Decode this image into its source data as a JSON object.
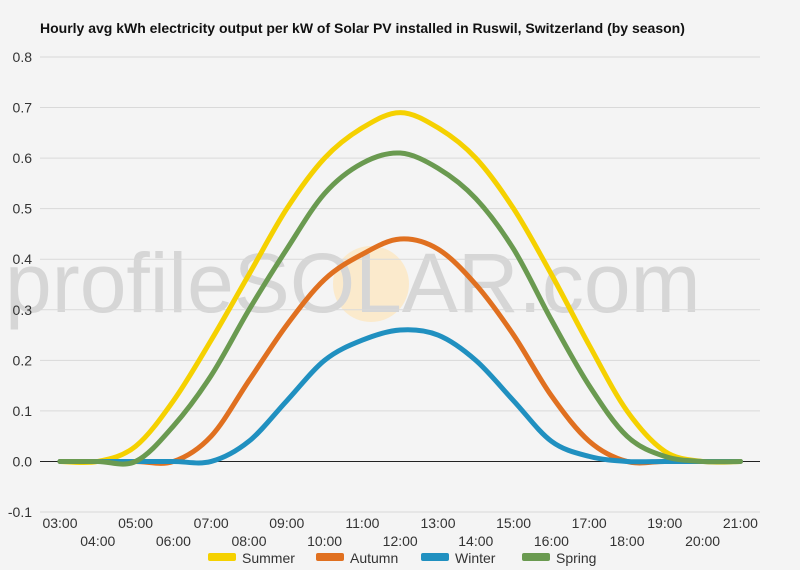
{
  "chart_data": {
    "type": "line",
    "title": "Hourly avg kWh electricity output per kW of Solar PV installed in Ruswil, Switzerland (by season)",
    "watermark": "profileSOLAR.com",
    "xlabel": "",
    "ylabel": "",
    "ylim": [
      -0.1,
      0.8
    ],
    "yticks": [
      "-0.1",
      "0.0",
      "0.1",
      "0.2",
      "0.3",
      "0.4",
      "0.5",
      "0.6",
      "0.7",
      "0.8"
    ],
    "xticks": [
      "03:00",
      "04:00",
      "05:00",
      "06:00",
      "07:00",
      "08:00",
      "09:00",
      "10:00",
      "11:00",
      "12:00",
      "13:00",
      "14:00",
      "15:00",
      "16:00",
      "17:00",
      "18:00",
      "19:00",
      "20:00",
      "21:00"
    ],
    "grid": true,
    "legend_position": "bottom",
    "series": [
      {
        "name": "Summer",
        "color": "#F5D100",
        "values": [
          0,
          0,
          0.03,
          0.12,
          0.24,
          0.37,
          0.5,
          0.6,
          0.66,
          0.69,
          0.66,
          0.6,
          0.5,
          0.37,
          0.23,
          0.1,
          0.02,
          0,
          0
        ]
      },
      {
        "name": "Autumn",
        "color": "#E07020",
        "values": [
          0,
          0,
          0,
          0,
          0.05,
          0.16,
          0.27,
          0.36,
          0.41,
          0.44,
          0.42,
          0.35,
          0.25,
          0.13,
          0.04,
          0,
          0,
          0,
          0
        ]
      },
      {
        "name": "Winter",
        "color": "#2090C0",
        "values": [
          0,
          0,
          0,
          0,
          0,
          0.04,
          0.12,
          0.2,
          0.24,
          0.26,
          0.25,
          0.2,
          0.12,
          0.04,
          0.01,
          0,
          0,
          0,
          0
        ]
      },
      {
        "name": "Spring",
        "color": "#6A9A50",
        "values": [
          0,
          0,
          0,
          0.07,
          0.17,
          0.3,
          0.42,
          0.53,
          0.59,
          0.61,
          0.58,
          0.52,
          0.42,
          0.28,
          0.15,
          0.05,
          0.01,
          0,
          0
        ]
      }
    ]
  }
}
